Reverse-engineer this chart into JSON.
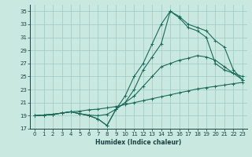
{
  "xlabel": "Humidex (Indice chaleur)",
  "ylabel": "",
  "xlim": [
    -0.5,
    23.5
  ],
  "ylim": [
    17,
    36
  ],
  "yticks": [
    17,
    19,
    21,
    23,
    25,
    27,
    29,
    31,
    33,
    35
  ],
  "xticks": [
    0,
    1,
    2,
    3,
    4,
    5,
    6,
    7,
    8,
    9,
    10,
    11,
    12,
    13,
    14,
    15,
    16,
    17,
    18,
    19,
    20,
    21,
    22,
    23
  ],
  "bg_color": "#c8e8e0",
  "grid_color": "#a0c8c0",
  "line_color": "#1a6b5a",
  "lines": [
    {
      "x": [
        0,
        1,
        2,
        3,
        4,
        5,
        6,
        7,
        8,
        9,
        10,
        11,
        12,
        13,
        14,
        15,
        16,
        17,
        18,
        19,
        20,
        21,
        22,
        23
      ],
      "y": [
        19,
        19.1,
        19.2,
        19.4,
        19.6,
        19.7,
        19.9,
        20.0,
        20.2,
        20.4,
        20.7,
        21.0,
        21.3,
        21.6,
        21.9,
        22.2,
        22.5,
        22.8,
        23.1,
        23.3,
        23.5,
        23.7,
        23.9,
        24.1
      ]
    },
    {
      "x": [
        0,
        1,
        2,
        3,
        4,
        5,
        6,
        7,
        8,
        9,
        10,
        11,
        12,
        13,
        14,
        15,
        16,
        17,
        18,
        19,
        20,
        21,
        22,
        23
      ],
      "y": [
        19,
        19.1,
        19.2,
        19.4,
        19.6,
        19.3,
        19.1,
        19.0,
        19.2,
        20.0,
        21.0,
        22.0,
        23.5,
        25.0,
        26.5,
        27.0,
        27.5,
        27.8,
        28.2,
        28.0,
        27.5,
        26.5,
        25.5,
        25.0
      ]
    },
    {
      "x": [
        0,
        1,
        2,
        3,
        4,
        5,
        6,
        7,
        8,
        9,
        10,
        11,
        12,
        13,
        14,
        15,
        16,
        17,
        18,
        19,
        20,
        21,
        22,
        23
      ],
      "y": [
        19,
        19.1,
        19.2,
        19.4,
        19.6,
        19.3,
        19.0,
        18.5,
        17.5,
        20.0,
        22.0,
        25.0,
        27.0,
        30.0,
        33.0,
        35.0,
        34.0,
        32.5,
        32.0,
        31.0,
        27.0,
        26.0,
        25.5,
        24.5
      ]
    },
    {
      "x": [
        0,
        1,
        2,
        3,
        4,
        5,
        6,
        7,
        8,
        9,
        10,
        11,
        12,
        13,
        14,
        15,
        16,
        17,
        18,
        19,
        20,
        21,
        22,
        23
      ],
      "y": [
        19,
        19.1,
        19.2,
        19.4,
        19.6,
        19.3,
        19.0,
        18.5,
        17.5,
        20.0,
        21.0,
        23.0,
        26.0,
        28.0,
        30.0,
        35.0,
        34.2,
        33.0,
        32.5,
        32.0,
        30.5,
        29.5,
        26.0,
        24.5
      ]
    }
  ]
}
